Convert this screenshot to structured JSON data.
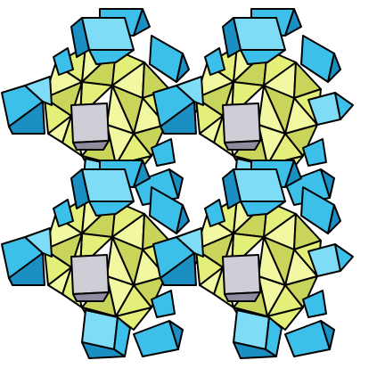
{
  "figure": {
    "subject": "polyhedral-honeycomb",
    "units": [
      {
        "name": "cluster-top-left",
        "row": 0,
        "col": 0
      },
      {
        "name": "cluster-top-right",
        "row": 0,
        "col": 1
      },
      {
        "name": "cluster-bottom-left",
        "row": 1,
        "col": 0
      },
      {
        "name": "cluster-bottom-right",
        "row": 1,
        "col": 1
      }
    ]
  },
  "palette": {
    "yellow_light": "#f2f8a2",
    "yellow": "#e4ef7a",
    "yellow_dark": "#c9d45a",
    "blue_light": "#7fdcf6",
    "blue": "#3cc0ea",
    "blue_dark": "#1c8fc2",
    "gray": "#cfcdd6",
    "gray_dark": "#8f8ca0",
    "edge": "#000000",
    "background": "#ffffff"
  }
}
